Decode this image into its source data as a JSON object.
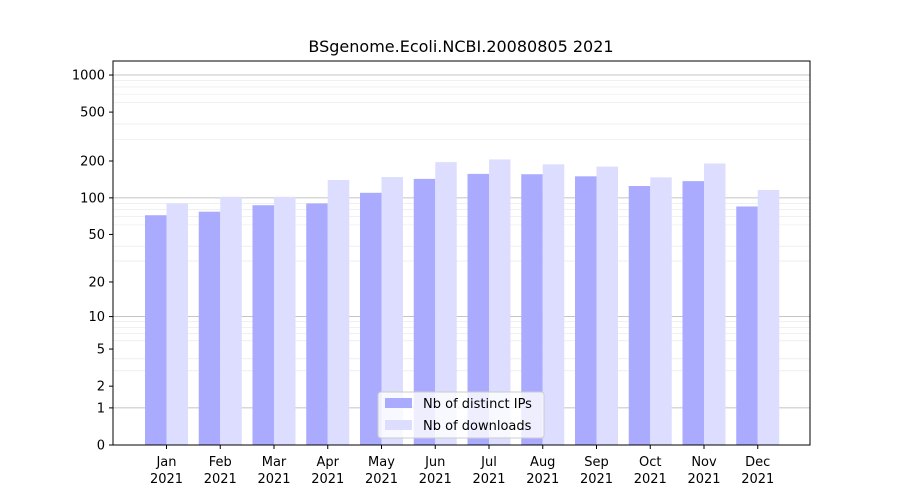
{
  "chart_data": {
    "type": "bar",
    "title": "BSgenome.Ecoli.NCBI.20080805 2021",
    "xlabel": "",
    "ylabel": "",
    "yscale": "log1p",
    "ylim": [
      0,
      1300
    ],
    "yticks": [
      0,
      1,
      2,
      5,
      10,
      20,
      50,
      100,
      200,
      500,
      1000
    ],
    "categories": [
      {
        "month": "Jan",
        "year": "2021"
      },
      {
        "month": "Feb",
        "year": "2021"
      },
      {
        "month": "Mar",
        "year": "2021"
      },
      {
        "month": "Apr",
        "year": "2021"
      },
      {
        "month": "May",
        "year": "2021"
      },
      {
        "month": "Jun",
        "year": "2021"
      },
      {
        "month": "Jul",
        "year": "2021"
      },
      {
        "month": "Aug",
        "year": "2021"
      },
      {
        "month": "Sep",
        "year": "2021"
      },
      {
        "month": "Oct",
        "year": "2021"
      },
      {
        "month": "Nov",
        "year": "2021"
      },
      {
        "month": "Dec",
        "year": "2021"
      }
    ],
    "series": [
      {
        "name": "Nb of distinct IPs",
        "color": "#aaaaff",
        "values": [
          72,
          77,
          87,
          90,
          110,
          143,
          157,
          156,
          150,
          125,
          137,
          85
        ]
      },
      {
        "name": "Nb of downloads",
        "color": "#ddddff",
        "values": [
          90,
          102,
          102,
          140,
          148,
          196,
          206,
          188,
          180,
          147,
          191,
          116
        ]
      }
    ],
    "grid": true,
    "legend": "bottom-center"
  }
}
